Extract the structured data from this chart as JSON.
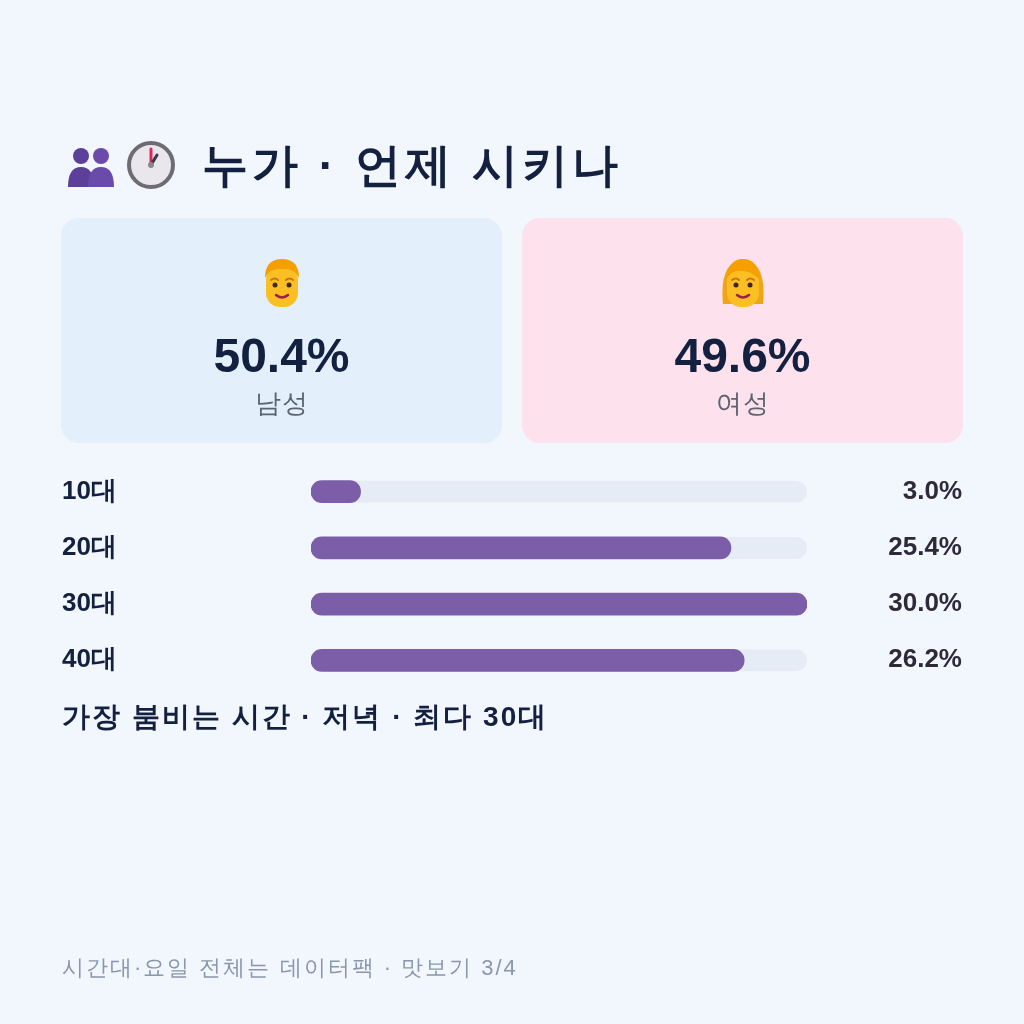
{
  "chart_data": [
    {
      "type": "other",
      "title": "누가 · 언제 시키나",
      "categories": [
        "남성",
        "여성"
      ],
      "value_labels": [
        "50.4%",
        "49.6%"
      ],
      "colors": [
        "#e3f0fb",
        "#fde1ec"
      ]
    },
    {
      "type": "bar",
      "orientation": "horizontal",
      "categories": [
        "10대",
        "20대",
        "30대",
        "40대"
      ],
      "values": [
        3.0,
        25.4,
        30.0,
        26.2
      ],
      "value_labels": [
        "3.0%",
        "25.4%",
        "30.0%",
        "26.2%"
      ],
      "color": "#7b5ea7",
      "xlim": [
        0,
        30
      ],
      "tick_labels": "y",
      "annotations": [
        "가장 붐비는 시간 · 저녁 · 최다 30대",
        "시간대·요일 전체는 데이터팩 · 맛보기 3/4"
      ]
    }
  ]
}
